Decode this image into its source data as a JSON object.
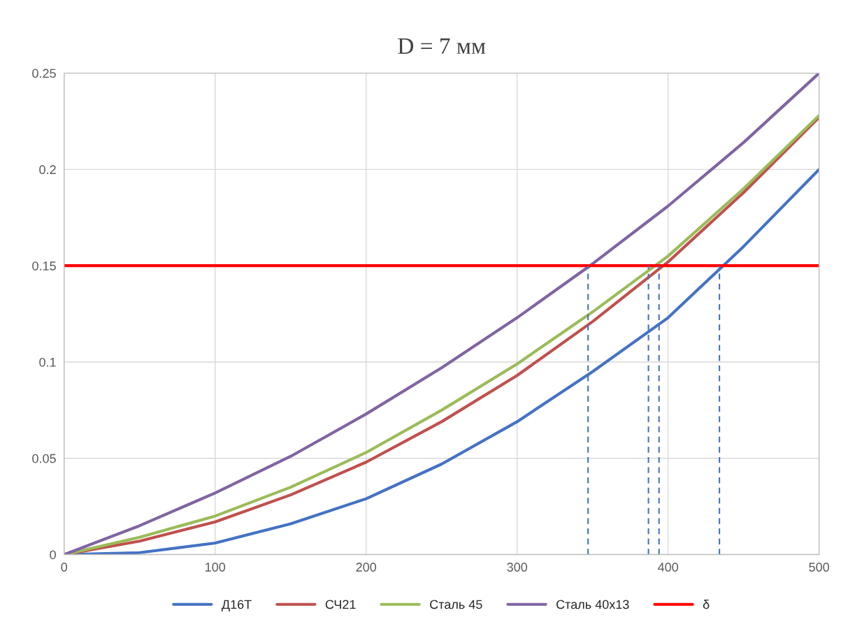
{
  "chart_data": {
    "type": "line",
    "title": "D = 7 мм",
    "x": [
      0,
      50,
      100,
      150,
      200,
      250,
      300,
      350,
      400,
      450,
      500
    ],
    "series": [
      {
        "name": "Д16Т",
        "color": "#4472c4",
        "values": [
          0,
          0.001,
          0.006,
          0.016,
          0.029,
          0.047,
          0.069,
          0.095,
          0.123,
          0.16,
          0.2
        ]
      },
      {
        "name": "СЧ21",
        "color": "#c0504d",
        "values": [
          0,
          0.007,
          0.017,
          0.031,
          0.048,
          0.069,
          0.093,
          0.121,
          0.152,
          0.188,
          0.227
        ]
      },
      {
        "name": "Сталь 45",
        "color": "#9bbb59",
        "values": [
          0,
          0.009,
          0.02,
          0.035,
          0.053,
          0.075,
          0.099,
          0.126,
          0.155,
          0.19,
          0.228
        ]
      },
      {
        "name": "Сталь 40х13",
        "color": "#8064a2",
        "values": [
          0,
          0.015,
          0.032,
          0.051,
          0.073,
          0.097,
          0.123,
          0.151,
          0.181,
          0.214,
          0.25
        ]
      },
      {
        "name": "δ",
        "color": "#ff0000",
        "x": [
          0,
          500
        ],
        "values": [
          0.15,
          0.15
        ]
      },
      {
        "color": "#4472c4",
        "line_style": "dashed",
        "x": [
          347,
          347
        ],
        "values": [
          0,
          0.15
        ]
      },
      {
        "color": "#4472c4",
        "line_style": "dashed",
        "x": [
          387,
          387
        ],
        "values": [
          0,
          0.15
        ]
      },
      {
        "color": "#4472c4",
        "line_style": "dashed",
        "x": [
          394,
          394
        ],
        "values": [
          0,
          0.15
        ]
      },
      {
        "color": "#4472c4",
        "line_style": "dashed",
        "x": [
          434,
          434
        ],
        "values": [
          0,
          0.15
        ]
      }
    ],
    "xlim": [
      0,
      500
    ],
    "xticks": [
      0,
      100,
      200,
      300,
      400,
      500
    ],
    "ylim": [
      0,
      0.25
    ],
    "yticks": [
      0,
      0.05,
      0.1,
      0.15,
      0.2,
      0.25
    ],
    "grid": true,
    "legend": "bottom",
    "line_style": "solid",
    "marker": "none"
  }
}
